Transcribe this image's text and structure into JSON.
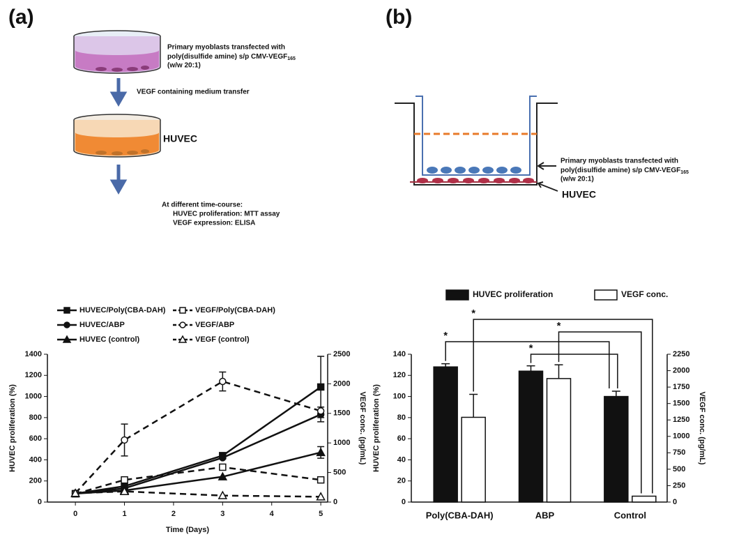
{
  "figure": {
    "panel_a": "(a)",
    "panel_b": "(b)",
    "diagram_a": {
      "myoblast_lines": [
        "Primary myoblasts transfected with",
        {
          "text": "poly(disulfide amine) s/p CMV-VEGF",
          "sub": "165"
        },
        "(w/w 20:1)"
      ],
      "transfer": "VEGF containing medium transfer",
      "huvec": "HUVEC",
      "timecourse": [
        "At different time-course:",
        "HUVEC proliferation: MTT assay",
        "VEGF expression: ELISA"
      ]
    },
    "diagram_b": {
      "myoblast_lines": [
        "Primary myoblasts transfected with",
        {
          "text": "poly(disulfide amine) s/p CMV-VEGF",
          "sub": "165"
        },
        "(w/w 20:1)"
      ],
      "huvec": "HUVEC"
    }
  },
  "chart_data": [
    {
      "type": "line",
      "x": [
        0,
        1,
        3,
        5
      ],
      "xlim": [
        -0.57,
        5.14
      ],
      "xticks": [
        0,
        1,
        2,
        3,
        4,
        5
      ],
      "ylim": [
        0,
        1400
      ],
      "yticks": [
        0,
        200,
        400,
        600,
        800,
        1000,
        1200,
        1400
      ],
      "y2lim": [
        0,
        2500
      ],
      "y2ticks": [
        0,
        500,
        1000,
        1500,
        2000,
        2500
      ],
      "xlabel": "Time (Days)",
      "ylabel": "HUVEC proliferation (%)",
      "y2label": "VEGF conc. (pg/mL)",
      "series": [
        {
          "name": "HUVEC/Poly(CBA-DAH)",
          "color": "#111",
          "marker": "square",
          "filled": true,
          "dashed": false,
          "values": [
            80,
            150,
            440,
            1090
          ],
          "errors": [
            null,
            null,
            25,
            290
          ]
        },
        {
          "name": "HUVEC/ABP",
          "color": "#111",
          "marker": "circle",
          "filled": true,
          "dashed": false,
          "values": [
            80,
            130,
            420,
            830
          ],
          "errors": [
            null,
            null,
            null,
            70
          ]
        },
        {
          "name": "HUVEC (control)",
          "color": "#111",
          "marker": "triangle",
          "filled": true,
          "dashed": false,
          "values": [
            80,
            110,
            240,
            470
          ],
          "errors": [
            null,
            null,
            null,
            55
          ]
        },
        {
          "name": "VEGF/Poly(CBA-DAH)",
          "color": "#111",
          "marker": "square",
          "filled": false,
          "dashed": true,
          "axis": "y2",
          "values": [
            140,
            375,
            590,
            375
          ],
          "errors": [
            null,
            null,
            null,
            null
          ]
        },
        {
          "name": "VEGF/ABP",
          "color": "#111",
          "marker": "circle",
          "filled": false,
          "dashed": true,
          "axis": "y2",
          "values": [
            150,
            1050,
            2040,
            1540
          ],
          "errors": [
            null,
            270,
            160,
            null
          ]
        },
        {
          "name": "VEGF (control)",
          "color": "#111",
          "marker": "triangle",
          "filled": false,
          "dashed": true,
          "axis": "y2",
          "values": [
            150,
            180,
            110,
            90
          ],
          "errors": [
            null,
            null,
            null,
            null
          ]
        }
      ]
    },
    {
      "type": "bar",
      "categories": [
        "Poly(CBA-DAH)",
        "ABP",
        "Control"
      ],
      "ylim": [
        0,
        140
      ],
      "yticks": [
        0,
        20,
        40,
        60,
        80,
        100,
        120,
        140
      ],
      "y2lim": [
        0,
        2250
      ],
      "y2ticks": [
        0,
        250,
        500,
        750,
        1000,
        1250,
        1500,
        1750,
        2000,
        2250
      ],
      "ylabel": "HUVEC proliferation (%)",
      "y2label": "VEGF conc. (pg/mL)",
      "series": [
        {
          "name": "HUVEC proliferation",
          "color": "#111",
          "values": [
            128,
            124,
            100
          ],
          "errors": [
            3,
            5,
            5
          ]
        },
        {
          "name": "VEGF conc.",
          "color": "#ffffff",
          "axis": "y2",
          "values": [
            1290,
            1880,
            90
          ],
          "errors": [
            350,
            210,
            null
          ]
        }
      ],
      "annotations": [
        "*",
        "*",
        "*",
        "*"
      ]
    }
  ]
}
